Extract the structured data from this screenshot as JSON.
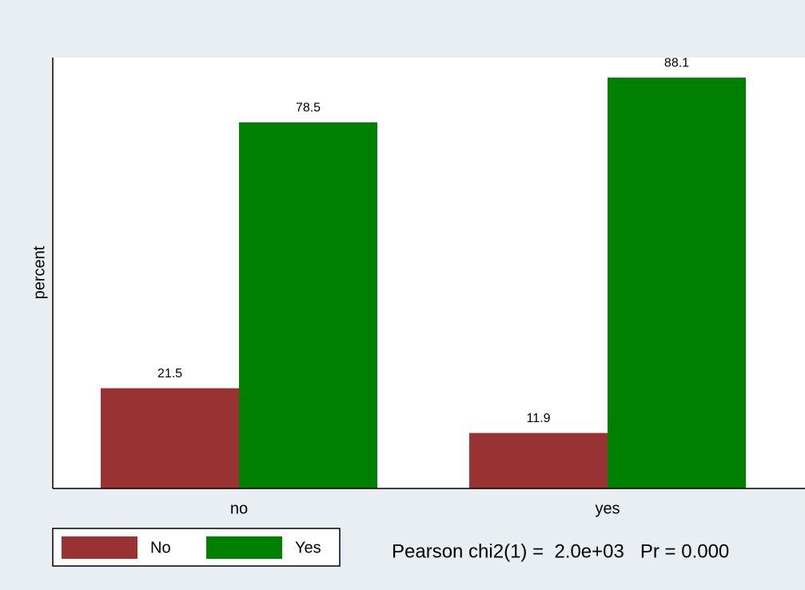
{
  "chart_data": {
    "type": "bar",
    "categories": [
      "no",
      "yes"
    ],
    "series": [
      {
        "name": "No",
        "color": "#993333",
        "values": [
          21.5,
          11.9
        ]
      },
      {
        "name": "Yes",
        "color": "#008000",
        "values": [
          78.5,
          88.1
        ]
      }
    ],
    "ylabel": "percent",
    "ylim": [
      0,
      92.4
    ],
    "note": "Pearson chi2(1) =  2.0e+03   Pr = 0.000",
    "show_value_labels": true,
    "legend": "bottom-left"
  }
}
